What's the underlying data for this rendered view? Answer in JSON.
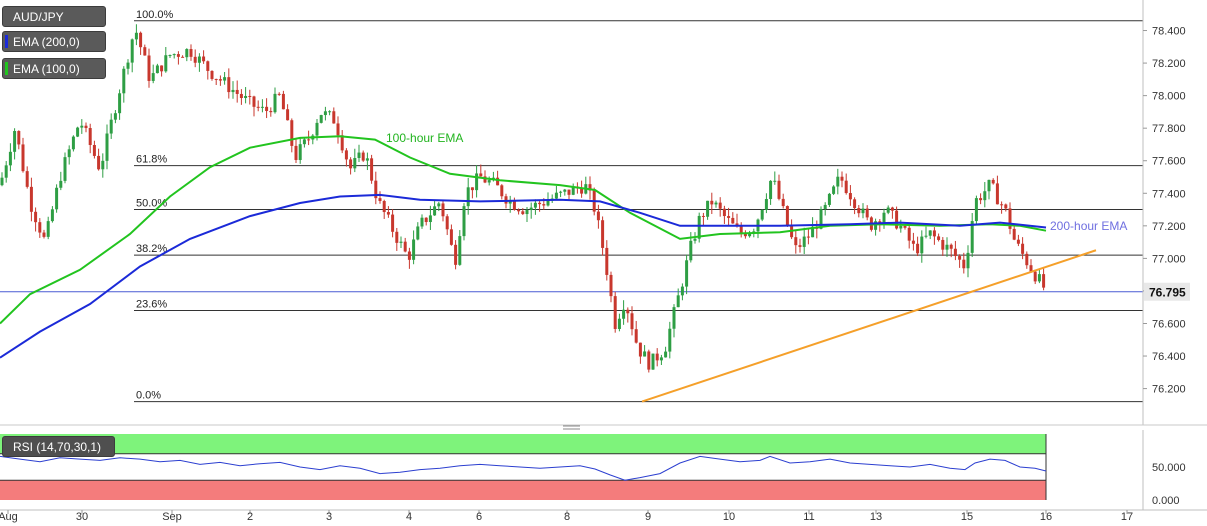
{
  "symbol": "AUD/JPY",
  "legend": [
    {
      "label": "EMA (200,0)",
      "color": "#1b2ad8"
    },
    {
      "label": "EMA (100,0)",
      "color": "#22c41f"
    }
  ],
  "colors": {
    "bull": "#2e9e44",
    "bear": "#c8372d",
    "ema200": "#1b2ad8",
    "ema100": "#22c41f",
    "trendline": "#f5a02a",
    "rsi": "#2c3fd0",
    "rsi_overbought": "#7ef37b",
    "rsi_oversold": "#f47c7c",
    "ema_note200": "#6f6fe0",
    "ema_note100": "#22b41f"
  },
  "annotations": {
    "ema100_label": "100-hour EMA",
    "ema200_label": "200-hour EMA"
  },
  "chart_data": {
    "type": "candlestick",
    "symbol": "AUD/JPY",
    "timeframe_hint": "hourly",
    "x_ticks": [
      "Aug",
      "30",
      "Sep",
      "2",
      "3",
      "4",
      "6",
      "8",
      "9",
      "10",
      "11",
      "13",
      "15",
      "16",
      "17"
    ],
    "y_ticks": [
      "78.400",
      "78.200",
      "78.000",
      "77.800",
      "77.600",
      "77.400",
      "77.200",
      "77.000",
      "76.800",
      "76.600",
      "76.400",
      "76.200"
    ],
    "ylim": [
      76.05,
      78.52
    ],
    "last_price": "76.795",
    "fibonacci": [
      {
        "label": "100.0%",
        "price": 78.46
      },
      {
        "label": "61.8%",
        "price": 77.57
      },
      {
        "label": "50.0%",
        "price": 77.3
      },
      {
        "label": "38.2%",
        "price": 77.02
      },
      {
        "label": "23.6%",
        "price": 76.68
      },
      {
        "label": "0.0%",
        "price": 76.12
      }
    ],
    "ema200_points": [
      [
        0,
        76.39
      ],
      [
        40,
        76.55
      ],
      [
        90,
        76.72
      ],
      [
        140,
        76.95
      ],
      [
        190,
        77.12
      ],
      [
        250,
        77.26
      ],
      [
        300,
        77.34
      ],
      [
        340,
        77.38
      ],
      [
        380,
        77.39
      ],
      [
        420,
        77.36
      ],
      [
        480,
        77.35
      ],
      [
        560,
        77.36
      ],
      [
        600,
        77.35
      ],
      [
        640,
        77.28
      ],
      [
        680,
        77.2
      ],
      [
        720,
        77.2
      ],
      [
        780,
        77.2
      ],
      [
        850,
        77.21
      ],
      [
        900,
        77.22
      ],
      [
        960,
        77.2
      ],
      [
        1000,
        77.22
      ],
      [
        1046,
        77.19
      ]
    ],
    "ema100_points": [
      [
        0,
        76.6
      ],
      [
        30,
        76.78
      ],
      [
        80,
        76.93
      ],
      [
        130,
        77.15
      ],
      [
        170,
        77.38
      ],
      [
        210,
        77.56
      ],
      [
        250,
        77.68
      ],
      [
        300,
        77.74
      ],
      [
        340,
        77.75
      ],
      [
        375,
        77.73
      ],
      [
        410,
        77.62
      ],
      [
        450,
        77.52
      ],
      [
        500,
        77.48
      ],
      [
        560,
        77.45
      ],
      [
        595,
        77.42
      ],
      [
        630,
        77.28
      ],
      [
        680,
        77.12
      ],
      [
        720,
        77.15
      ],
      [
        780,
        77.16
      ],
      [
        830,
        77.2
      ],
      [
        880,
        77.21
      ],
      [
        940,
        77.2
      ],
      [
        990,
        77.21
      ],
      [
        1020,
        77.2
      ],
      [
        1046,
        77.17
      ]
    ],
    "trendline": [
      [
        642,
        76.12
      ],
      [
        1096,
        77.05
      ]
    ],
    "candles_hint": [
      [
        0,
        77.45
      ],
      [
        15,
        77.8
      ],
      [
        30,
        77.35
      ],
      [
        45,
        77.1
      ],
      [
        60,
        77.5
      ],
      [
        80,
        77.85
      ],
      [
        100,
        77.55
      ],
      [
        120,
        78.05
      ],
      [
        135,
        78.42
      ],
      [
        150,
        78.1
      ],
      [
        170,
        78.25
      ],
      [
        190,
        78.28
      ],
      [
        210,
        78.15
      ],
      [
        230,
        78.05
      ],
      [
        250,
        77.95
      ],
      [
        265,
        77.9
      ],
      [
        280,
        78.0
      ],
      [
        295,
        77.62
      ],
      [
        310,
        77.75
      ],
      [
        320,
        77.9
      ],
      [
        335,
        77.85
      ],
      [
        350,
        77.55
      ],
      [
        365,
        77.65
      ],
      [
        378,
        77.35
      ],
      [
        395,
        77.15
      ],
      [
        408,
        77.0
      ],
      [
        420,
        77.2
      ],
      [
        440,
        77.35
      ],
      [
        455,
        76.98
      ],
      [
        465,
        77.4
      ],
      [
        480,
        77.5
      ],
      [
        495,
        77.45
      ],
      [
        510,
        77.35
      ],
      [
        525,
        77.3
      ],
      [
        545,
        77.35
      ],
      [
        565,
        77.4
      ],
      [
        585,
        77.45
      ],
      [
        595,
        77.3
      ],
      [
        605,
        77.0
      ],
      [
        615,
        76.6
      ],
      [
        625,
        76.75
      ],
      [
        638,
        76.45
      ],
      [
        650,
        76.35
      ],
      [
        665,
        76.45
      ],
      [
        680,
        76.8
      ],
      [
        690,
        77.05
      ],
      [
        700,
        77.25
      ],
      [
        712,
        77.35
      ],
      [
        725,
        77.25
      ],
      [
        740,
        77.15
      ],
      [
        755,
        77.2
      ],
      [
        772,
        77.5
      ],
      [
        785,
        77.25
      ],
      [
        795,
        77.05
      ],
      [
        810,
        77.15
      ],
      [
        825,
        77.3
      ],
      [
        840,
        77.5
      ],
      [
        855,
        77.35
      ],
      [
        870,
        77.2
      ],
      [
        885,
        77.3
      ],
      [
        900,
        77.2
      ],
      [
        915,
        77.05
      ],
      [
        930,
        77.15
      ],
      [
        950,
        77.05
      ],
      [
        965,
        76.95
      ],
      [
        975,
        77.35
      ],
      [
        990,
        77.45
      ],
      [
        1005,
        77.3
      ],
      [
        1015,
        77.1
      ],
      [
        1030,
        76.95
      ],
      [
        1046,
        76.8
      ]
    ],
    "rsi": {
      "title": "RSI (14,70,30,1)",
      "y_ticks": [
        "50.000",
        "0.000"
      ],
      "overbought": 70,
      "oversold": 30,
      "values_hint": [
        [
          0,
          66
        ],
        [
          20,
          62
        ],
        [
          40,
          58
        ],
        [
          60,
          64
        ],
        [
          80,
          62
        ],
        [
          100,
          60
        ],
        [
          120,
          64
        ],
        [
          140,
          62
        ],
        [
          160,
          58
        ],
        [
          180,
          60
        ],
        [
          200,
          54
        ],
        [
          220,
          57
        ],
        [
          240,
          52
        ],
        [
          260,
          55
        ],
        [
          280,
          57
        ],
        [
          300,
          50
        ],
        [
          320,
          46
        ],
        [
          340,
          52
        ],
        [
          360,
          48
        ],
        [
          380,
          40
        ],
        [
          400,
          42
        ],
        [
          420,
          46
        ],
        [
          440,
          48
        ],
        [
          460,
          52
        ],
        [
          480,
          54
        ],
        [
          500,
          52
        ],
        [
          520,
          50
        ],
        [
          540,
          48
        ],
        [
          560,
          50
        ],
        [
          580,
          52
        ],
        [
          595,
          47
        ],
        [
          610,
          38
        ],
        [
          625,
          30
        ],
        [
          640,
          34
        ],
        [
          660,
          40
        ],
        [
          680,
          56
        ],
        [
          700,
          66
        ],
        [
          720,
          62
        ],
        [
          740,
          58
        ],
        [
          760,
          60
        ],
        [
          770,
          66
        ],
        [
          790,
          56
        ],
        [
          810,
          58
        ],
        [
          830,
          62
        ],
        [
          850,
          56
        ],
        [
          870,
          54
        ],
        [
          890,
          52
        ],
        [
          910,
          50
        ],
        [
          930,
          54
        ],
        [
          950,
          48
        ],
        [
          965,
          46
        ],
        [
          975,
          56
        ],
        [
          990,
          62
        ],
        [
          1005,
          60
        ],
        [
          1020,
          50
        ],
        [
          1035,
          48
        ],
        [
          1046,
          44
        ]
      ]
    }
  }
}
